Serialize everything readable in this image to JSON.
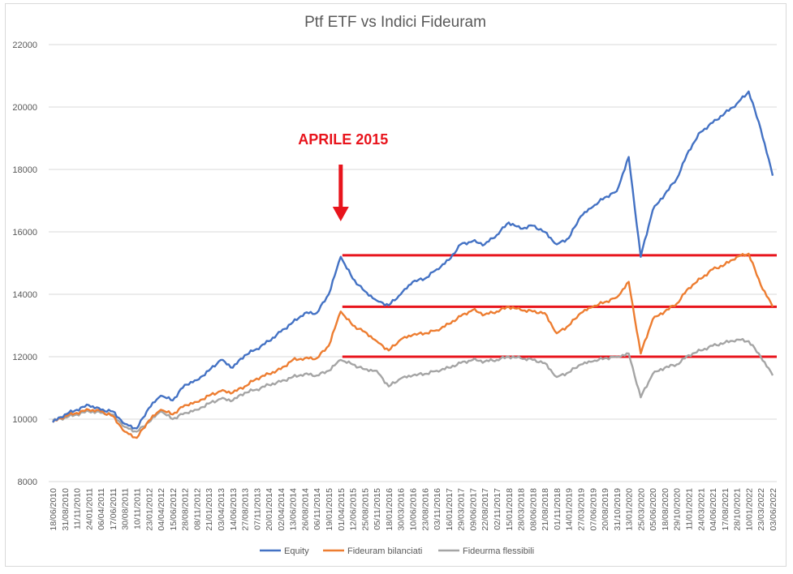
{
  "chart_data": {
    "type": "line",
    "title": "Ptf ETF vs Indici Fideuram",
    "xlabel": "",
    "ylabel": "",
    "ylim": [
      8000,
      22000
    ],
    "yticks": [
      8000,
      10000,
      12000,
      14000,
      16000,
      18000,
      20000,
      22000
    ],
    "grid": true,
    "legend_position": "bottom",
    "categories": [
      "18/06/2010",
      "31/08/2010",
      "11/11/2010",
      "24/01/2011",
      "06/04/2011",
      "17/06/2011",
      "30/08/2011",
      "10/11/2011",
      "23/01/2012",
      "04/04/2012",
      "15/06/2012",
      "28/08/2012",
      "08/11/2012",
      "21/01/2013",
      "03/04/2013",
      "14/06/2013",
      "27/08/2013",
      "07/11/2013",
      "20/01/2014",
      "02/04/2014",
      "13/06/2014",
      "26/08/2014",
      "06/11/2014",
      "19/01/2015",
      "01/04/2015",
      "12/06/2015",
      "25/08/2015",
      "05/11/2015",
      "18/01/2016",
      "30/03/2016",
      "10/06/2016",
      "23/08/2016",
      "03/11/2016",
      "16/01/2017",
      "29/03/2017",
      "09/06/2017",
      "22/08/2017",
      "02/11/2017",
      "15/01/2018",
      "28/03/2018",
      "08/06/2018",
      "21/08/2018",
      "01/11/2018",
      "14/01/2019",
      "27/03/2019",
      "07/06/2019",
      "20/08/2019",
      "31/10/2019",
      "13/01/2020",
      "25/03/2020",
      "05/06/2020",
      "18/08/2020",
      "29/10/2020",
      "11/01/2021",
      "24/03/2021",
      "04/06/2021",
      "17/08/2021",
      "28/10/2021",
      "10/01/2022",
      "23/03/2022",
      "03/06/2022"
    ],
    "series": [
      {
        "name": "Equity",
        "color": "#4472c4",
        "values": [
          9900,
          10150,
          10300,
          10450,
          10300,
          10250,
          9850,
          9700,
          10350,
          10750,
          10600,
          11100,
          11250,
          11550,
          11900,
          11650,
          12050,
          12250,
          12500,
          12800,
          13100,
          13400,
          13400,
          14000,
          15200,
          14500,
          14100,
          13800,
          13650,
          14000,
          14400,
          14500,
          14800,
          15100,
          15600,
          15700,
          15600,
          15900,
          16300,
          16100,
          16200,
          16000,
          15600,
          15800,
          16500,
          16800,
          17100,
          17300,
          18400,
          15200,
          16700,
          17200,
          17700,
          18600,
          19200,
          19500,
          19800,
          20100,
          20500,
          19300,
          17800
        ]
      },
      {
        "name": "Fideuram bilanciati",
        "color": "#ed7d31",
        "values": [
          9900,
          10100,
          10200,
          10300,
          10250,
          10100,
          9600,
          9400,
          9950,
          10300,
          10150,
          10450,
          10550,
          10750,
          10900,
          10850,
          11050,
          11300,
          11450,
          11600,
          11900,
          11950,
          11950,
          12350,
          13450,
          13000,
          12800,
          12500,
          12200,
          12550,
          12700,
          12750,
          12850,
          13050,
          13300,
          13500,
          13350,
          13450,
          13600,
          13500,
          13450,
          13400,
          12750,
          13000,
          13400,
          13600,
          13750,
          13900,
          14400,
          12100,
          13200,
          13450,
          13700,
          14200,
          14500,
          14800,
          14950,
          15200,
          15300,
          14300,
          13600
        ]
      },
      {
        "name": "Fideurma flessibili",
        "color": "#a5a5a5",
        "values": [
          9950,
          10050,
          10150,
          10250,
          10200,
          10150,
          9750,
          9600,
          9900,
          10250,
          10000,
          10200,
          10300,
          10500,
          10650,
          10600,
          10850,
          10950,
          11100,
          11200,
          11350,
          11450,
          11400,
          11550,
          11900,
          11750,
          11600,
          11550,
          11050,
          11300,
          11400,
          11450,
          11550,
          11650,
          11800,
          11900,
          11850,
          11900,
          12000,
          11950,
          11900,
          11800,
          11350,
          11500,
          11750,
          11850,
          11950,
          12000,
          12100,
          10700,
          11450,
          11650,
          11750,
          12050,
          12200,
          12350,
          12450,
          12550,
          12500,
          12000,
          11400
        ]
      }
    ],
    "reference_lines": [
      {
        "from": "01/04/2015",
        "to": "03/06/2022",
        "value": 15250,
        "color": "#e8141c"
      },
      {
        "from": "01/04/2015",
        "to": "03/06/2022",
        "value": 13600,
        "color": "#e8141c"
      },
      {
        "from": "01/04/2015",
        "to": "03/06/2022",
        "value": 12000,
        "color": "#e8141c"
      }
    ],
    "annotation": {
      "text": "APRILE 2015",
      "at": "01/04/2015",
      "color": "#e8141c"
    }
  }
}
